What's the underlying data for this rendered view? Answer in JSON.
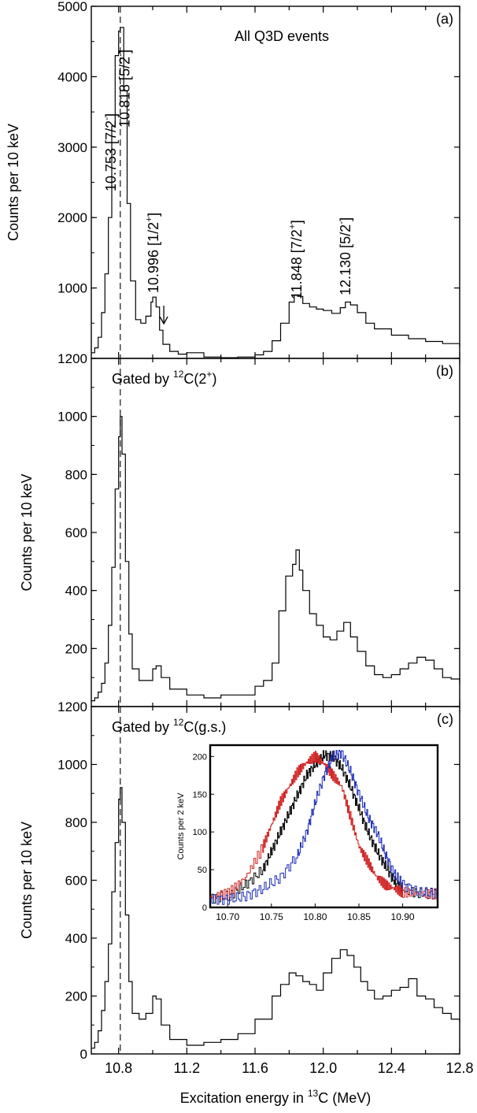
{
  "chart_data": [
    {
      "type": "line",
      "panel_label": "(a)",
      "annotation": "All Q3D events",
      "ylabel": "Counts per 10 keV",
      "xlim": [
        10.64,
        12.8
      ],
      "ylim": [
        0,
        5000
      ],
      "yticks": [
        1000,
        2000,
        3000,
        4000,
        5000
      ],
      "ytick_labels": [
        "1000",
        "2000",
        "3000",
        "4000",
        "5000"
      ],
      "reference_line_x": 10.81,
      "peak_labels": [
        {
          "energy": "10.753",
          "jpi": "[7/2",
          "sup": "-",
          "end": "]",
          "x": 10.755
        },
        {
          "energy": "10.818",
          "jpi": "[5/2",
          "sup": "-",
          "end": "]",
          "x": 10.835
        },
        {
          "energy": "10.996",
          "jpi": "[1/2",
          "sup": "+",
          "end": "]",
          "x": 11.005
        },
        {
          "energy": "11.848",
          "jpi": "[7/2",
          "sup": "+",
          "end": "]",
          "x": 11.845
        },
        {
          "energy": "12.130",
          "jpi": "[5/2",
          "sup": "-",
          "end": "]",
          "x": 12.13
        }
      ],
      "arrow_marker_x": 11.065,
      "series": [
        {
          "x": [
            10.64,
            10.66,
            10.68,
            10.7,
            10.72,
            10.74,
            10.76,
            10.78,
            10.8,
            10.81,
            10.83,
            10.85,
            10.87,
            10.9,
            10.93,
            10.96,
            10.99,
            11.0,
            11.02,
            11.04,
            11.06,
            11.1,
            11.15,
            11.2,
            11.3,
            11.4,
            11.5,
            11.6,
            11.65,
            11.7,
            11.75,
            11.8,
            11.83,
            11.85,
            11.88,
            11.92,
            11.96,
            12.0,
            12.05,
            12.1,
            12.13,
            12.16,
            12.2,
            12.25,
            12.3,
            12.4,
            12.5,
            12.6,
            12.7,
            12.8
          ],
          "values": [
            80,
            150,
            300,
            650,
            1200,
            2000,
            3300,
            4300,
            4650,
            4700,
            3800,
            2200,
            1100,
            550,
            500,
            600,
            800,
            870,
            730,
            400,
            200,
            100,
            60,
            80,
            20,
            10,
            20,
            50,
            100,
            250,
            500,
            800,
            900,
            880,
            780,
            730,
            700,
            680,
            640,
            720,
            800,
            760,
            650,
            500,
            420,
            330,
            280,
            240,
            210,
            160
          ]
        }
      ]
    },
    {
      "type": "line",
      "panel_label": "(b)",
      "annotation_pre": "Gated by ",
      "annotation_sup": "12",
      "annotation_post": "C(2",
      "annotation_sup2": "+",
      "annotation_end": ")",
      "ylabel": "Counts per 10 keV",
      "xlim": [
        10.64,
        12.8
      ],
      "ylim": [
        0,
        1200
      ],
      "yticks": [
        200,
        400,
        600,
        800,
        1000,
        1200
      ],
      "ytick_labels": [
        "200",
        "400",
        "600",
        "800",
        "1000",
        "1200"
      ],
      "reference_line_x": 10.81,
      "series": [
        {
          "x": [
            10.64,
            10.66,
            10.68,
            10.7,
            10.72,
            10.74,
            10.76,
            10.78,
            10.8,
            10.81,
            10.82,
            10.84,
            10.86,
            10.88,
            10.92,
            10.96,
            11.0,
            11.02,
            11.05,
            11.1,
            11.2,
            11.3,
            11.4,
            11.5,
            11.6,
            11.65,
            11.7,
            11.74,
            11.78,
            11.82,
            11.84,
            11.86,
            11.88,
            11.92,
            11.96,
            12.0,
            12.04,
            12.08,
            12.12,
            12.16,
            12.2,
            12.25,
            12.3,
            12.35,
            12.4,
            12.45,
            12.5,
            12.55,
            12.6,
            12.65,
            12.7,
            12.75,
            12.8
          ],
          "values": [
            20,
            30,
            50,
            80,
            150,
            280,
            480,
            750,
            930,
            1000,
            870,
            500,
            250,
            130,
            90,
            90,
            130,
            140,
            100,
            60,
            40,
            30,
            40,
            40,
            70,
            90,
            150,
            330,
            450,
            490,
            540,
            470,
            400,
            320,
            280,
            240,
            230,
            260,
            290,
            240,
            190,
            140,
            110,
            100,
            110,
            130,
            150,
            170,
            160,
            130,
            100,
            95,
            80
          ]
        }
      ]
    },
    {
      "type": "line",
      "panel_label": "(c)",
      "annotation_pre": "Gated by ",
      "annotation_sup": "12",
      "annotation_post": "C(g.s.)",
      "ylabel": "Counts per 10 keV",
      "xlabel_pre": "Excitation energy in ",
      "xlabel_sup": "13",
      "xlabel_post": "C (MeV)",
      "xlim": [
        10.64,
        12.8
      ],
      "ylim": [
        0,
        1200
      ],
      "yticks": [
        0,
        200,
        400,
        600,
        800,
        1000,
        1200
      ],
      "ytick_labels": [
        "0",
        "200",
        "400",
        "600",
        "800",
        "1000",
        "1200"
      ],
      "xticks": [
        10.8,
        11.2,
        11.6,
        12.0,
        12.4,
        12.8
      ],
      "xtick_labels": [
        "10.8",
        "11.2",
        "11.6",
        "12.0",
        "12.4",
        "12.8"
      ],
      "reference_line_x": 10.81,
      "series": [
        {
          "x": [
            10.64,
            10.66,
            10.68,
            10.7,
            10.72,
            10.74,
            10.76,
            10.78,
            10.8,
            10.81,
            10.82,
            10.84,
            10.86,
            10.88,
            10.92,
            10.96,
            11.0,
            11.02,
            11.05,
            11.1,
            11.2,
            11.3,
            11.4,
            11.5,
            11.6,
            11.7,
            11.75,
            11.8,
            11.84,
            11.88,
            11.92,
            11.96,
            12.0,
            12.05,
            12.1,
            12.14,
            12.18,
            12.22,
            12.26,
            12.3,
            12.35,
            12.4,
            12.45,
            12.5,
            12.55,
            12.6,
            12.65,
            12.7,
            12.75,
            12.8
          ],
          "values": [
            20,
            40,
            80,
            150,
            250,
            380,
            560,
            730,
            880,
            920,
            800,
            480,
            250,
            140,
            120,
            140,
            200,
            190,
            100,
            50,
            30,
            40,
            50,
            70,
            120,
            200,
            240,
            280,
            270,
            250,
            240,
            220,
            280,
            330,
            360,
            340,
            300,
            250,
            220,
            190,
            200,
            220,
            230,
            260,
            200,
            190,
            160,
            140,
            120,
            110
          ]
        }
      ],
      "inset": {
        "type": "line",
        "ylabel": "Counts per 2 keV",
        "xlim": [
          10.68,
          10.94
        ],
        "ylim": [
          0,
          215
        ],
        "xticks": [
          10.7,
          10.75,
          10.8,
          10.85,
          10.9
        ],
        "xtick_labels": [
          "10.70",
          "10.75",
          "10.80",
          "10.85",
          "10.90"
        ],
        "yticks": [
          0,
          50,
          100,
          150,
          200
        ],
        "ytick_labels": [
          "0",
          "50",
          "100",
          "150",
          "200"
        ],
        "series": [
          {
            "color": "#000000",
            "x": [
              10.68,
              10.7,
              10.72,
              10.74,
              10.75,
              10.76,
              10.77,
              10.78,
              10.79,
              10.8,
              10.81,
              10.82,
              10.83,
              10.84,
              10.85,
              10.86,
              10.87,
              10.88,
              10.89,
              10.9,
              10.92,
              10.94
            ],
            "values": [
              12,
              15,
              30,
              50,
              75,
              100,
              125,
              150,
              175,
              190,
              202,
              200,
              185,
              160,
              130,
              100,
              75,
              55,
              35,
              25,
              18,
              18
            ]
          },
          {
            "color": "#d01c1c",
            "x": [
              10.68,
              10.7,
              10.72,
              10.74,
              10.75,
              10.76,
              10.77,
              10.78,
              10.79,
              10.8,
              10.81,
              10.82,
              10.83,
              10.84,
              10.85,
              10.86,
              10.87,
              10.88,
              10.89,
              10.9,
              10.92,
              10.94
            ],
            "values": [
              14,
              18,
              40,
              80,
              110,
              140,
              160,
              180,
              192,
              200,
              190,
              175,
              160,
              120,
              80,
              60,
              40,
              30,
              25,
              20,
              18,
              18
            ]
          },
          {
            "color": "#1c2bb5",
            "x": [
              10.68,
              10.7,
              10.72,
              10.74,
              10.76,
              10.78,
              10.79,
              10.8,
              10.81,
              10.82,
              10.83,
              10.84,
              10.85,
              10.86,
              10.87,
              10.88,
              10.89,
              10.9,
              10.92,
              10.94
            ],
            "values": [
              12,
              10,
              15,
              25,
              40,
              70,
              100,
              140,
              175,
              200,
              205,
              180,
              150,
              120,
              100,
              70,
              45,
              30,
              20,
              18
            ]
          }
        ]
      }
    }
  ]
}
